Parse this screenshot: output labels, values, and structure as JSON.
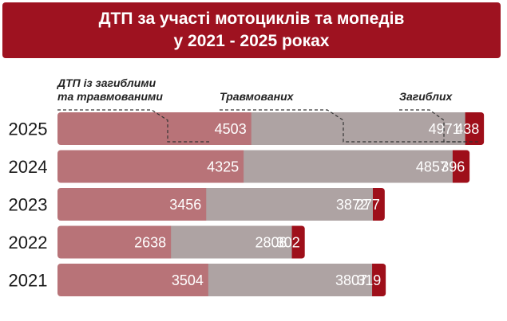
{
  "title": {
    "line1": "ДТП за участі мотоциклів та мопедів",
    "line2": "у 2021 - 2025 роках"
  },
  "legend": {
    "injured_fatal": {
      "line1": "ДТП із загиблими",
      "line2": "та травмованими"
    },
    "injured": "Травмованих",
    "killed": "Загиблих"
  },
  "colors": {
    "title_bg": "#9e1220",
    "accidents": "#b87378",
    "injured": "#aea3a3",
    "killed": "#9e0f1a"
  },
  "chart_data": {
    "type": "bar",
    "orientation": "horizontal",
    "stacked": true,
    "categories": [
      "2025",
      "2024",
      "2023",
      "2022",
      "2021"
    ],
    "series": [
      {
        "name": "ДТП із загиблими та травмованими",
        "values": [
          4503,
          4325,
          3456,
          2638,
          3504
        ]
      },
      {
        "name": "Травмованих",
        "values": [
          4971,
          4857,
          3872,
          2808,
          3807
        ]
      },
      {
        "name": "Загиблих",
        "values": [
          438,
          396,
          277,
          302,
          319
        ]
      }
    ],
    "legend_position": "top"
  }
}
